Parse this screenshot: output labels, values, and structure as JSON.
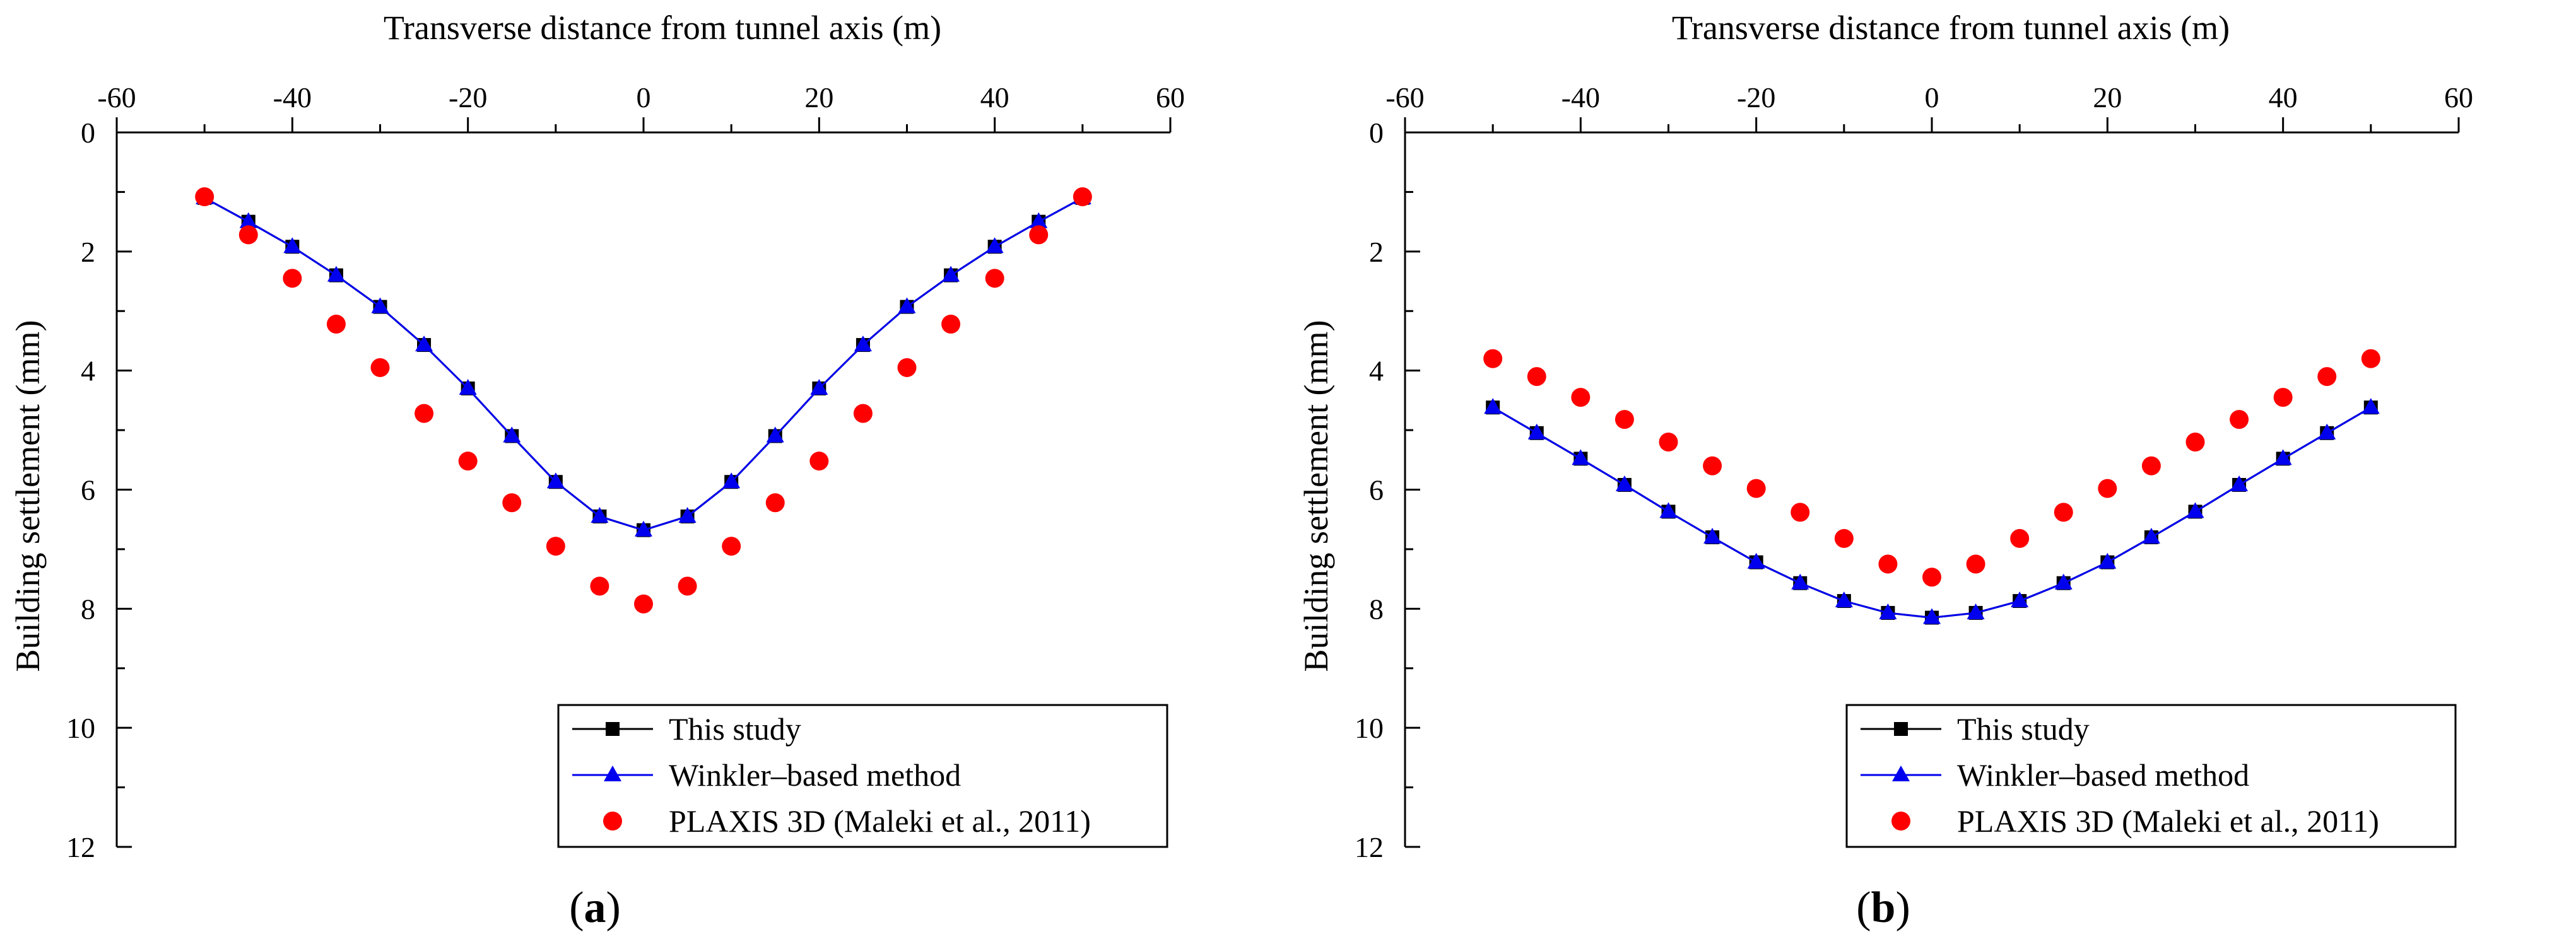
{
  "chart_data": [
    {
      "type": "line",
      "panel_label": "a",
      "xlabel": "Transverse distance from tunnel axis (m)",
      "ylabel": "Building settlement (mm)",
      "xlim": [
        -60,
        60
      ],
      "ylim": [
        0,
        12
      ],
      "x_ticks": [
        -60,
        -40,
        -20,
        0,
        20,
        40,
        60
      ],
      "y_ticks": [
        0,
        2,
        4,
        6,
        8,
        10,
        12
      ],
      "x_axis_position": "top",
      "y_inverted": true,
      "grid": false,
      "legend_position": "bottom-right",
      "series": [
        {
          "name": "This study",
          "marker": "square",
          "line": true,
          "color": "#000000",
          "x": [
            -50,
            -45,
            -40,
            -35,
            -30,
            -25,
            -20,
            -15,
            -10,
            -5,
            0,
            5,
            10,
            15,
            20,
            25,
            30,
            35,
            40,
            45,
            50
          ],
          "y": [
            1.1,
            1.5,
            1.92,
            2.4,
            2.93,
            3.57,
            4.3,
            5.1,
            5.87,
            6.45,
            6.68,
            6.45,
            5.87,
            5.1,
            4.3,
            3.57,
            2.93,
            2.4,
            1.92,
            1.5,
            1.1
          ]
        },
        {
          "name": "Winkler–based method",
          "marker": "triangle",
          "line": true,
          "color": "#0000ee",
          "x": [
            -50,
            -45,
            -40,
            -35,
            -30,
            -25,
            -20,
            -15,
            -10,
            -5,
            0,
            5,
            10,
            15,
            20,
            25,
            30,
            35,
            40,
            45,
            50
          ],
          "y": [
            1.1,
            1.5,
            1.92,
            2.4,
            2.93,
            3.57,
            4.3,
            5.1,
            5.87,
            6.45,
            6.68,
            6.45,
            5.87,
            5.1,
            4.3,
            3.57,
            2.93,
            2.4,
            1.92,
            1.5,
            1.1
          ]
        },
        {
          "name": "PLAXIS 3D (Maleki et al., 2011)",
          "marker": "circle",
          "line": false,
          "color": "#ff0000",
          "x": [
            -50,
            -45,
            -40,
            -35,
            -30,
            -25,
            -20,
            -15,
            -10,
            -5,
            0,
            5,
            10,
            15,
            20,
            25,
            30,
            35,
            40,
            45,
            50
          ],
          "y": [
            1.08,
            1.72,
            2.45,
            3.22,
            3.95,
            4.72,
            5.52,
            6.22,
            6.95,
            7.62,
            7.92,
            7.62,
            6.95,
            6.22,
            5.52,
            4.72,
            3.95,
            3.22,
            2.45,
            1.72,
            1.08
          ]
        }
      ]
    },
    {
      "type": "line",
      "panel_label": "b",
      "xlabel": "Transverse distance from tunnel axis (m)",
      "ylabel": "Building settlement (mm)",
      "xlim": [
        -60,
        60
      ],
      "ylim": [
        0,
        12
      ],
      "x_ticks": [
        -60,
        -40,
        -20,
        0,
        20,
        40,
        60
      ],
      "y_ticks": [
        0,
        2,
        4,
        6,
        8,
        10,
        12
      ],
      "x_axis_position": "top",
      "y_inverted": true,
      "grid": false,
      "legend_position": "bottom-right",
      "series": [
        {
          "name": "This study",
          "marker": "square",
          "line": true,
          "color": "#000000",
          "x": [
            -50,
            -45,
            -40,
            -35,
            -30,
            -25,
            -20,
            -15,
            -10,
            -5,
            0,
            5,
            10,
            15,
            20,
            25,
            30,
            35,
            40,
            45,
            50
          ],
          "y": [
            4.62,
            5.05,
            5.48,
            5.92,
            6.37,
            6.8,
            7.22,
            7.57,
            7.87,
            8.07,
            8.15,
            8.07,
            7.87,
            7.57,
            7.22,
            6.8,
            6.37,
            5.92,
            5.48,
            5.05,
            4.62
          ]
        },
        {
          "name": "Winkler–based method",
          "marker": "triangle",
          "line": true,
          "color": "#0000ee",
          "x": [
            -50,
            -45,
            -40,
            -35,
            -30,
            -25,
            -20,
            -15,
            -10,
            -5,
            0,
            5,
            10,
            15,
            20,
            25,
            30,
            35,
            40,
            45,
            50
          ],
          "y": [
            4.62,
            5.05,
            5.48,
            5.92,
            6.37,
            6.8,
            7.22,
            7.57,
            7.87,
            8.07,
            8.15,
            8.07,
            7.87,
            7.57,
            7.22,
            6.8,
            6.37,
            5.92,
            5.48,
            5.05,
            4.62
          ]
        },
        {
          "name": "PLAXIS 3D (Maleki et al., 2011)",
          "marker": "circle",
          "line": false,
          "color": "#ff0000",
          "x": [
            -50,
            -45,
            -40,
            -35,
            -30,
            -25,
            -20,
            -15,
            -10,
            -5,
            0,
            5,
            10,
            15,
            20,
            25,
            30,
            35,
            40,
            45,
            50
          ],
          "y": [
            3.8,
            4.1,
            4.45,
            4.82,
            5.2,
            5.6,
            5.98,
            6.38,
            6.82,
            7.25,
            7.47,
            7.25,
            6.82,
            6.38,
            5.98,
            5.6,
            5.2,
            4.82,
            4.45,
            4.1,
            3.8
          ]
        }
      ]
    }
  ]
}
